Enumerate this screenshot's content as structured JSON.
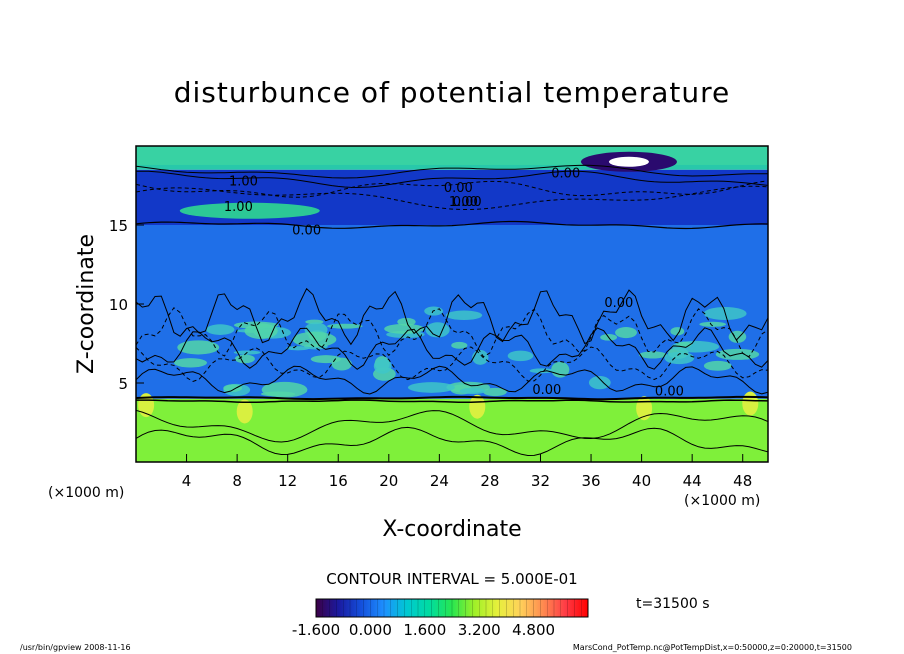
{
  "chart_data": {
    "type": "heatmap",
    "title": "disturbunce of potential temperature",
    "xlabel": "X-coordinate",
    "ylabel": "Z-coordinate",
    "x_unit_left": "(×1000 m)",
    "x_unit_right": "(×1000 m)",
    "xlim": [
      0,
      50
    ],
    "ylim": [
      0,
      20
    ],
    "x_ticks": [
      4,
      8,
      12,
      16,
      20,
      24,
      28,
      32,
      36,
      40,
      44,
      48
    ],
    "y_ticks": [
      5,
      10,
      15
    ],
    "contour_interval_text": "CONTOUR INTERVAL = 5.000E-01",
    "time_label": "t=31500 s",
    "colorbar": {
      "min": -1.6,
      "max": 6.4,
      "tick_labels": [
        "-1.600",
        "0.000",
        "1.600",
        "3.200",
        "4.800"
      ],
      "tick_values": [
        -1.6,
        0.0,
        1.6,
        3.2,
        4.8
      ],
      "colors": [
        "#3c0046",
        "#1a1aa0",
        "#1450dc",
        "#1e90ff",
        "#00c8d2",
        "#00dca0",
        "#28e650",
        "#a0f028",
        "#e6f03c",
        "#ffd25a",
        "#ff8c50",
        "#ff3c46",
        "#ff0000"
      ]
    },
    "contour_labels": [
      "1.00",
      "1.00",
      "0.00",
      "0.00",
      "0.00",
      "1.00",
      "0.00",
      "0.00",
      "0.00",
      "0.00"
    ],
    "layers": [
      {
        "z_from": 0,
        "z_to": 4,
        "value": 1.8,
        "color": "#7ff03a"
      },
      {
        "z_from": 4,
        "z_to": 15,
        "value": -0.8,
        "color": "#1f6fe8"
      },
      {
        "z_from": 15,
        "z_to": 18.5,
        "value": -1.3,
        "color": "#1238c8"
      },
      {
        "z_from": 18.5,
        "z_to": 20,
        "value": 0.6,
        "color": "#28c8aa"
      }
    ]
  },
  "footer": {
    "left": "/usr/bin/gpview   2008-11-16",
    "right": "MarsCond_PotTemp.nc@PotTempDist,x=0:50000,z=0:20000,t=31500"
  }
}
